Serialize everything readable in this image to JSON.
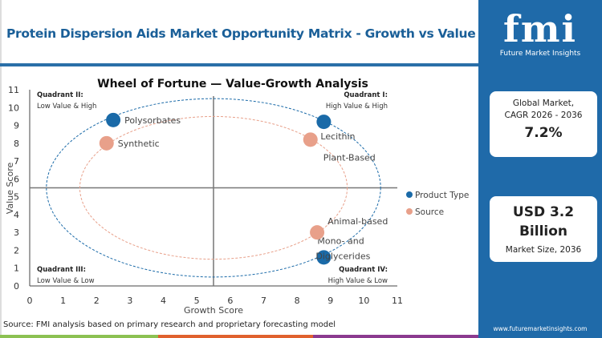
{
  "header": {
    "title": "Protein Dispersion Aids Market Opportunity Matrix - Growth vs Value"
  },
  "brand": {
    "logo_text": "fmi",
    "name": "Future Market Insights",
    "url": "www.futuremarketinsights.com",
    "panel_color": "#1f6aa9"
  },
  "cards": [
    {
      "label_line1": "Global Market,",
      "label_line2": "CAGR 2026 - 2036",
      "value": "7.2%"
    },
    {
      "value_line1": "USD 3.2",
      "value_line2": "Billion",
      "label": "Market Size, 2036"
    }
  ],
  "source": "Source: FMI analysis based on primary research and proprietary forecasting model",
  "chart_data": {
    "type": "scatter",
    "title": "Wheel of Fortune — Value-Growth Analysis",
    "xlabel": "Growth Score",
    "ylabel": "Value Score",
    "xlim": [
      0,
      11
    ],
    "ylim": [
      0,
      11
    ],
    "xticks": [
      "0",
      "1",
      "2",
      "3",
      "4",
      "5",
      "6",
      "7",
      "8",
      "9",
      "10",
      "11"
    ],
    "yticks": [
      "0",
      "1",
      "2",
      "3",
      "4",
      "5",
      "6",
      "7",
      "8",
      "9",
      "10",
      "11"
    ],
    "quadrant_divider": {
      "x": 5.5,
      "y": 5.5
    },
    "quadrants": [
      {
        "label": "Quadrant I:",
        "sub": "High Value & High"
      },
      {
        "label": "Quadrant II:",
        "sub": "Low Value & High"
      },
      {
        "label": "Quadrant III:",
        "sub": "Low Value & Low"
      },
      {
        "label": "Quadrant IV:",
        "sub": "High Value & Low"
      }
    ],
    "legend_position": "right",
    "series": [
      {
        "name": "Product Type",
        "color": "#1a6aa8",
        "ellipse": {
          "cx": 5.5,
          "cy": 5.5,
          "rx": 5,
          "ry": 5
        },
        "points": [
          {
            "label": "Polysorbates",
            "x": 2.5,
            "y": 9.3
          },
          {
            "label": "Lecithin",
            "x": 8.8,
            "y": 9.2
          },
          {
            "label": "Mono- and Diglycerides",
            "x": 8.8,
            "y": 1.6
          }
        ]
      },
      {
        "name": "Source",
        "color": "#e8a08a",
        "ellipse": {
          "cx": 5.5,
          "cy": 5.5,
          "rx": 4,
          "ry": 4
        },
        "points": [
          {
            "label": "Synthetic",
            "x": 2.3,
            "y": 8.0
          },
          {
            "label": "Plant-Based",
            "x": 8.4,
            "y": 8.2
          },
          {
            "label": "Animal-based",
            "x": 8.6,
            "y": 3.0
          }
        ]
      }
    ]
  }
}
